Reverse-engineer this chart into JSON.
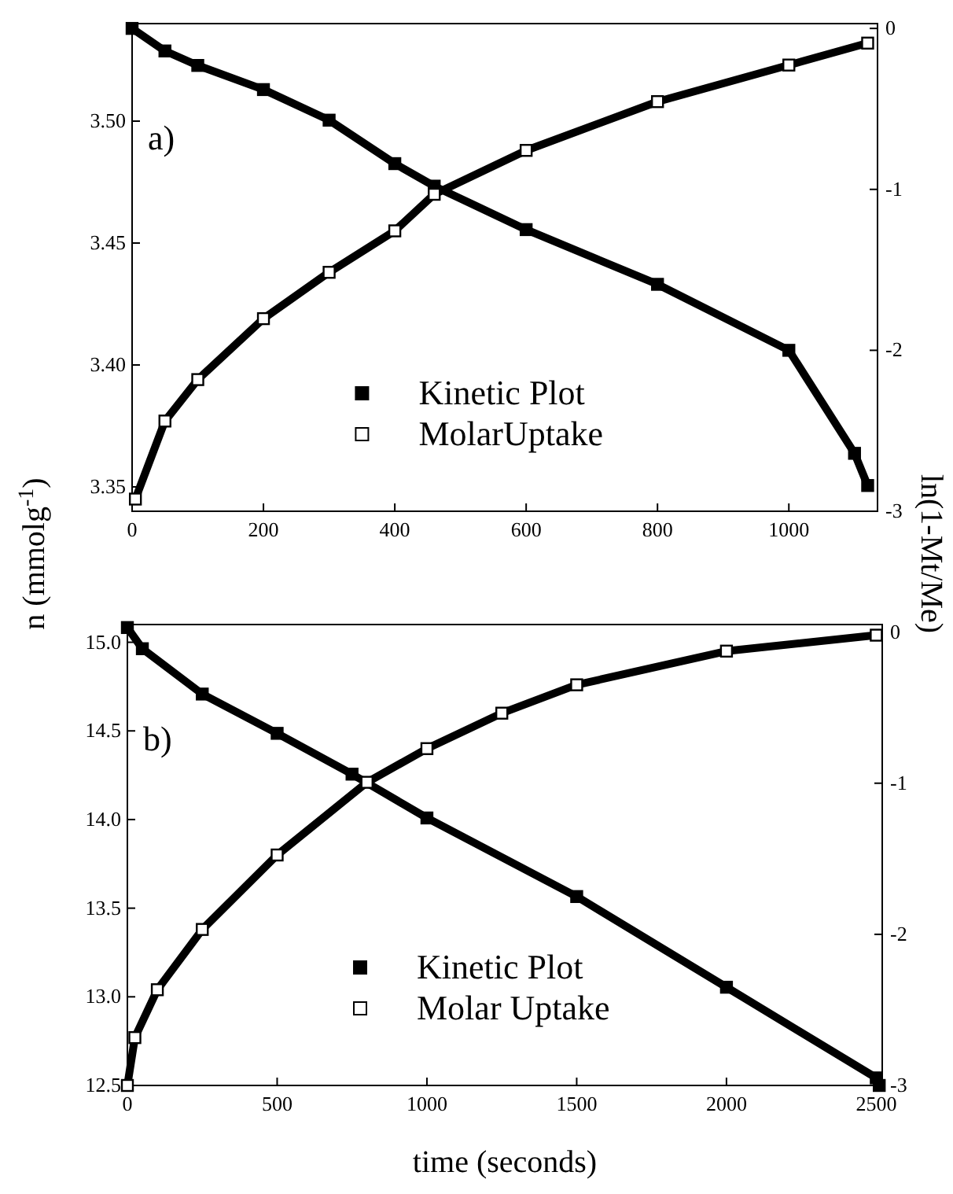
{
  "chart_data": [
    {
      "type": "line",
      "ylabel": "n (mmolg$^{-1}$)",
      "y2label": "ln(1-Mt/Me)",
      "annotations": [
        "a)"
      ],
      "legend": "bottom",
      "marker": "square",
      "grid": false,
      "xlim": [
        0,
        1135
      ],
      "xticks": [
        0,
        200,
        400,
        600,
        800,
        1000
      ],
      "ylim": [
        3.34,
        3.54
      ],
      "yticks": [
        {
          "value": 3.35,
          "label": "3.35"
        },
        {
          "value": 3.4,
          "label": "3.40"
        },
        {
          "value": 3.45,
          "label": "3.45"
        },
        {
          "value": 3.5,
          "label": "3.50"
        }
      ],
      "y2lim": [
        -3,
        0.03
      ],
      "y2ticks": [
        0,
        -1,
        -2,
        -3
      ],
      "series": [
        {
          "name": "Kinetic Plot",
          "color": "#000000",
          "axis": "y2",
          "x": [
            0,
            50,
            100,
            200,
            300,
            400,
            460,
            600,
            800,
            1000,
            1100,
            1120
          ],
          "values": [
            0,
            -0.14,
            -0.23,
            -0.38,
            -0.57,
            -0.84,
            -0.98,
            -1.25,
            -1.59,
            -2.0,
            -2.64,
            -2.84
          ]
        },
        {
          "name": "MolarUptake",
          "color": "#000000",
          "x": [
            5,
            50,
            100,
            200,
            300,
            400,
            460,
            600,
            800,
            1000,
            1120
          ],
          "values": [
            3.345,
            3.377,
            3.394,
            3.419,
            3.438,
            3.455,
            3.47,
            3.488,
            3.508,
            3.523,
            3.532
          ]
        }
      ]
    },
    {
      "type": "line",
      "xlabel": "time (seconds)",
      "annotations": [
        "b)"
      ],
      "legend": "bottom",
      "marker": "square",
      "grid": false,
      "xlim": [
        0,
        2520
      ],
      "xticks": [
        0,
        500,
        1000,
        1500,
        2000,
        2500
      ],
      "ylim": [
        12.5,
        15.1
      ],
      "yticks": [
        12.5,
        {
          "value": 13,
          "label": "13.0"
        },
        13.5,
        {
          "value": 14,
          "label": "14.0"
        },
        14.5,
        {
          "value": 15,
          "label": "15.0"
        }
      ],
      "y2lim": [
        -3,
        0.05
      ],
      "y2ticks": [
        0,
        -1,
        -2,
        -3
      ],
      "series": [
        {
          "name": "Kinetic Plot",
          "color": "#000000",
          "axis": "y2",
          "x": [
            0,
            50,
            250,
            500,
            750,
            1000,
            1500,
            2000,
            2500,
            2510
          ],
          "values": [
            0.03,
            -0.11,
            -0.41,
            -0.67,
            -0.94,
            -1.23,
            -1.75,
            -2.35,
            -2.95,
            -3.0
          ]
        },
        {
          "name": "Molar Uptake",
          "color": "#000000",
          "x": [
            0,
            25,
            100,
            250,
            500,
            800,
            1000,
            1250,
            1500,
            2000,
            2500
          ],
          "values": [
            12.5,
            12.77,
            13.04,
            13.38,
            13.8,
            14.21,
            14.4,
            14.6,
            14.76,
            14.95,
            15.04
          ]
        }
      ]
    }
  ]
}
